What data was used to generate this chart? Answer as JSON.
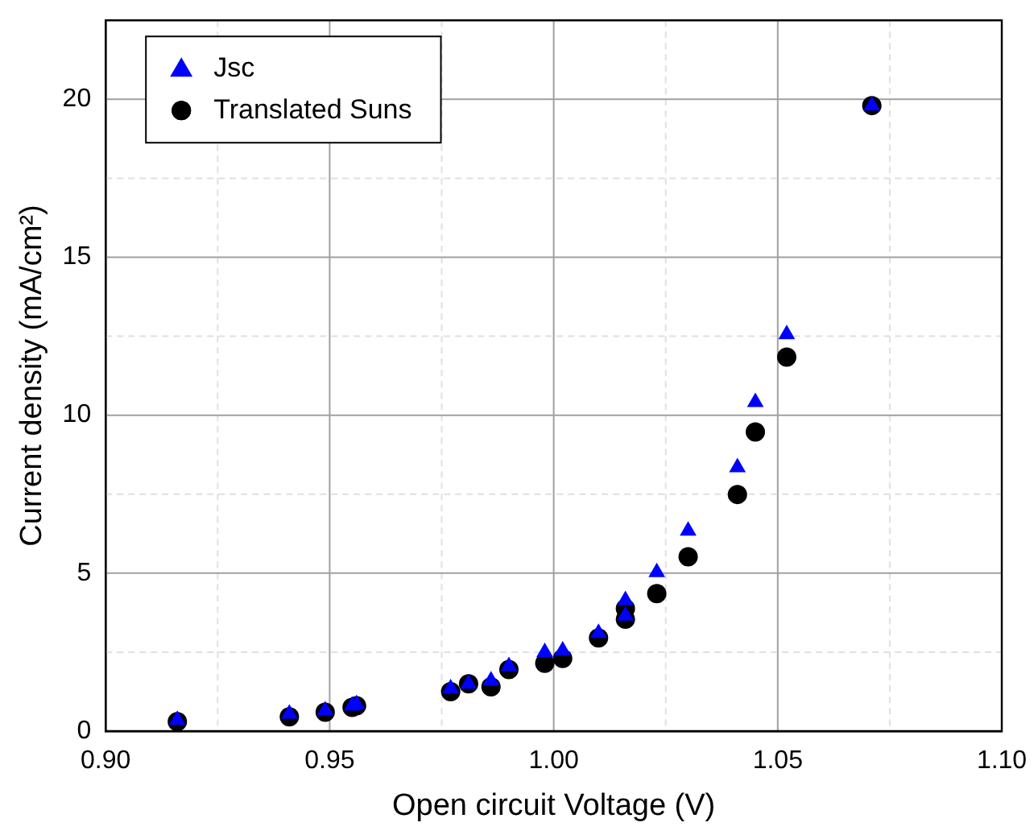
{
  "chart_data": {
    "type": "scatter",
    "xlabel": "Open circuit Voltage (V)",
    "ylabel": "Current density (mA/cm²)",
    "xlim": [
      0.9,
      1.1
    ],
    "ylim": [
      0,
      22.5
    ],
    "xticks": [
      {
        "value": 0.9,
        "label": "0.90"
      },
      {
        "value": 0.925,
        "label": null
      },
      {
        "value": 0.95,
        "label": "0.95"
      },
      {
        "value": 0.975,
        "label": null
      },
      {
        "value": 1.0,
        "label": "1.00"
      },
      {
        "value": 1.025,
        "label": null
      },
      {
        "value": 1.05,
        "label": "1.05"
      },
      {
        "value": 1.075,
        "label": null
      },
      {
        "value": 1.1,
        "label": "1.10"
      }
    ],
    "yticks": [
      0,
      {
        "value": 2.5,
        "label": null
      },
      5,
      {
        "value": 7.5,
        "label": null
      },
      10,
      {
        "value": 12.5,
        "label": null
      },
      15,
      {
        "value": 17.5,
        "label": null
      },
      20
    ],
    "grid": true,
    "legend": "top left",
    "x": [
      0.916,
      0.941,
      0.949,
      0.955,
      0.956,
      0.977,
      0.981,
      0.986,
      0.99,
      0.998,
      1.002,
      1.01,
      1.016,
      1.016,
      1.023,
      1.03,
      1.041,
      1.045,
      1.052,
      1.071
    ],
    "series": [
      {
        "name": "Jsc",
        "color": "#0000ff",
        "marker": "triangle",
        "values": [
          0.35,
          0.55,
          0.65,
          0.8,
          0.85,
          1.35,
          1.5,
          1.6,
          2.05,
          2.5,
          2.55,
          3.1,
          4.14,
          3.65,
          5.03,
          6.34,
          8.35,
          10.41,
          12.56,
          19.8
        ]
      },
      {
        "name": "Translated Suns",
        "color": "#000000",
        "marker": "circle",
        "values": [
          0.3,
          0.45,
          0.6,
          0.75,
          0.8,
          1.25,
          1.5,
          1.4,
          1.95,
          2.15,
          2.3,
          2.95,
          3.88,
          3.54,
          4.35,
          5.52,
          7.49,
          9.47,
          11.84,
          19.8
        ]
      }
    ]
  }
}
